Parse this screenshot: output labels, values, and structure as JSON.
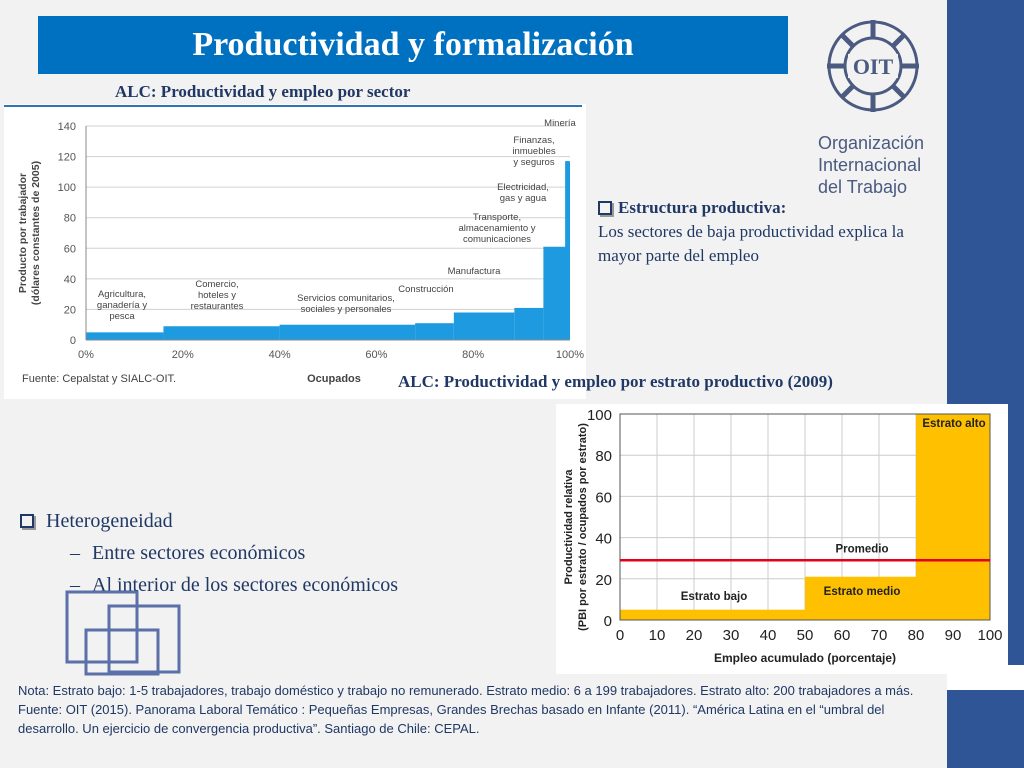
{
  "slide": {
    "title": "Productividad y formalización",
    "chart1_title": "ALC: Productividad y empleo por sector",
    "chart2_title": "ALC: Productividad y empleo por estrato productivo (2009)",
    "logo": {
      "text": "OIT",
      "org_lines": [
        "Organización",
        "Internacional",
        "del Trabajo"
      ]
    },
    "estructura": {
      "heading": "Estructura productiva:",
      "body": "Los sectores de baja productividad explica la mayor parte del empleo"
    },
    "heterogeneidad": {
      "heading": "Heterogeneidad",
      "items": [
        "Entre sectores económicos",
        "Al interior de los sectores económicos"
      ]
    },
    "notes": [
      "Nota: Estrato bajo: 1-5 trabajadores, trabajo doméstico y trabajo no remunerado. Estrato medio: 6 a 199 trabajadores. Estrato alto: 200 trabajadores a más.",
      "Fuente: OIT (2015). Panorama Laboral Temático : Pequeñas Empresas, Grandes Brechas basado en Infante (2011). “América Latina en el “umbral del desarrollo. Un ejercicio de convergencia productiva”. Santiago de Chile: CEPAL."
    ],
    "colors": {
      "title_bg": "#0070c0",
      "band": "#2f5597",
      "bar_blue": "#1e9be0",
      "bar_yellow": "#ffc000",
      "avg_line": "#e3001b"
    }
  },
  "chart_data": [
    {
      "type": "bar",
      "ylabel": "Producto por trabajador (dólares constantes de 2005)",
      "xlabel": "Ocupados",
      "source": "Fuente: Cepalstat y SIALC-OIT.",
      "ylim": [
        0,
        140
      ],
      "yticks": [
        "0",
        "20",
        "40",
        "60",
        "80",
        "100",
        "120",
        "140"
      ],
      "xticks": [
        "0%",
        "20%",
        "40%",
        "60%",
        "80%",
        "100%"
      ],
      "grid": true,
      "segments": [
        {
          "label": "Agricultura, ganadería y pesca",
          "x0": 0,
          "x1": 16,
          "value": 5
        },
        {
          "label": "Comercio, hoteles y restaurantes",
          "x0": 16,
          "x1": 40,
          "value": 9
        },
        {
          "label": "Servicios comunitarios, sociales y personales",
          "x0": 40,
          "x1": 68,
          "value": 10
        },
        {
          "label": "Construcción",
          "x0": 68,
          "x1": 76,
          "value": 11
        },
        {
          "label": "Manufactura",
          "x0": 76,
          "x1": 88.5,
          "value": 18
        },
        {
          "label": "Transporte, almacenamiento y comunicaciones",
          "x0": 88.5,
          "x1": 94.5,
          "value": 21
        },
        {
          "label": "Electricidad, gas y agua",
          "x0": 94.5,
          "x1": 99.3,
          "value": 61
        },
        {
          "label": "Finanzas, inmuebles y seguros",
          "x0": 99.3,
          "x1": 100,
          "value": 117
        },
        {
          "label": "Minería",
          "x0": 100,
          "x1": 100,
          "value": 140
        }
      ]
    },
    {
      "type": "bar",
      "ylabel": "Productividad relativa (PBI por estrato / ocupados por estrato)",
      "xlabel": "Empleo acumulado (porcentaje)",
      "ylim": [
        0,
        100
      ],
      "yticks": [
        "0",
        "20",
        "40",
        "60",
        "80",
        "100"
      ],
      "xticks": [
        "0",
        "10",
        "20",
        "30",
        "40",
        "50",
        "60",
        "70",
        "80",
        "90",
        "100"
      ],
      "grid": true,
      "segments": [
        {
          "label": "Estrato bajo",
          "x0": 0,
          "x1": 50,
          "value": 5
        },
        {
          "label": "Estrato medio",
          "x0": 50,
          "x1": 80,
          "value": 21
        },
        {
          "label": "Estrato alto",
          "x0": 80,
          "x1": 100,
          "value": 100
        }
      ],
      "average": {
        "label": "Promedio",
        "value": 29
      }
    }
  ]
}
